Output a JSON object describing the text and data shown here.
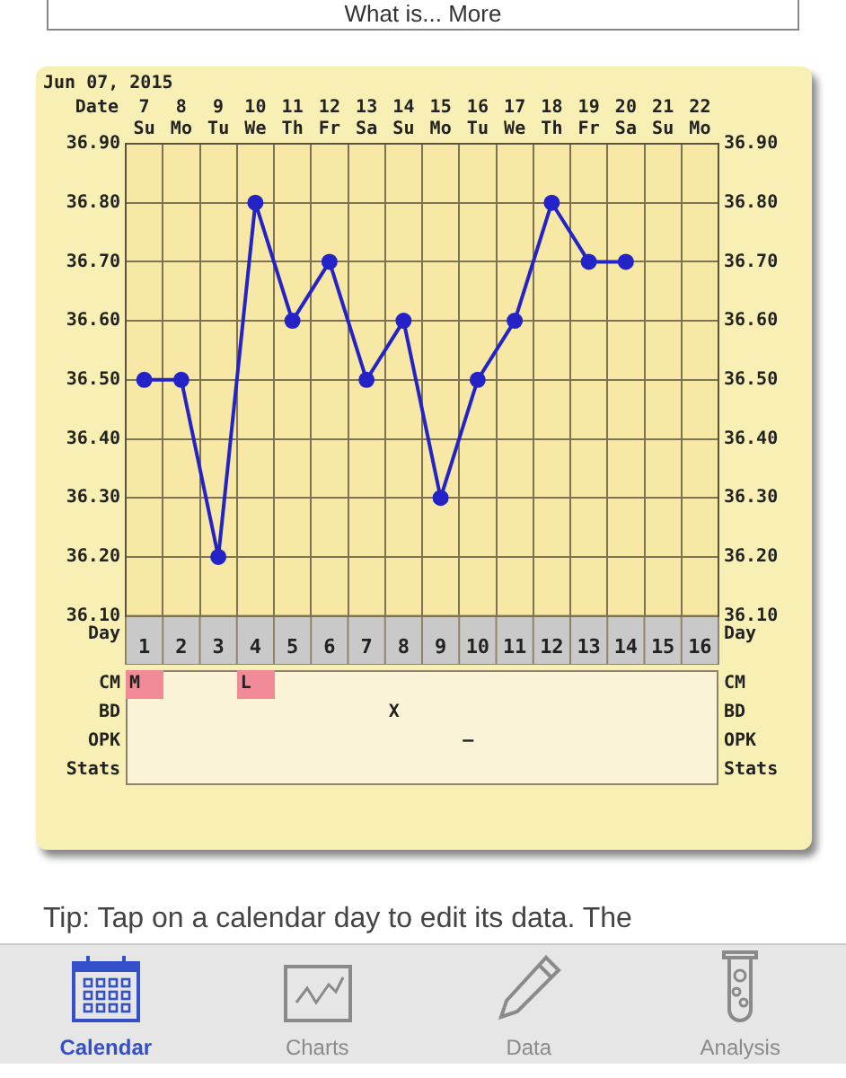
{
  "chart_data": [
    {
      "type": "line",
      "title": "Jun 07, 2015",
      "annotations": [
        "What is... More"
      ],
      "xlabel": "Date",
      "categories": [
        "7\nSu",
        "8\nMo",
        "9\nTu",
        "10\nWe",
        "11\nTh",
        "12\nFr",
        "13\nSa",
        "14\nSu",
        "15\nMo",
        "16\nTu",
        "17\nWe",
        "18\nTh",
        "19\nFr",
        "20\nSa",
        "21\nSu",
        "22\nMo"
      ],
      "series": [
        {
          "color": "#2323c8",
          "values": [
            36.5,
            36.5,
            36.2,
            36.8,
            36.6,
            36.7,
            36.5,
            36.6,
            36.3,
            36.5,
            36.6,
            36.8,
            36.7,
            36.7,
            null,
            null
          ]
        }
      ],
      "ylim": [
        36.1,
        36.9
      ],
      "yticks": [
        {
          "value": 36.1,
          "label": "36.10"
        },
        {
          "value": 36.2,
          "label": "36.20"
        },
        {
          "value": 36.3,
          "label": "36.30"
        },
        {
          "value": 36.4,
          "label": "36.40"
        },
        {
          "value": 36.5,
          "label": "36.50"
        },
        {
          "value": 36.6,
          "label": "36.60"
        },
        {
          "value": 36.7,
          "label": "36.70"
        },
        {
          "value": 36.8,
          "label": "36.80"
        },
        {
          "value": 36.9,
          "label": "36.90"
        }
      ],
      "y2lim": [
        36.1,
        36.9
      ],
      "y2ticks": [
        {
          "value": 36.1,
          "label": "36.10"
        },
        {
          "value": 36.2,
          "label": "36.20"
        },
        {
          "value": 36.3,
          "label": "36.30"
        },
        {
          "value": 36.4,
          "label": "36.40"
        },
        {
          "value": 36.5,
          "label": "36.50"
        },
        {
          "value": 36.6,
          "label": "36.60"
        },
        {
          "value": 36.7,
          "label": "36.70"
        },
        {
          "value": 36.8,
          "label": "36.80"
        },
        {
          "value": 36.9,
          "label": "36.90"
        }
      ],
      "x2label": "Day",
      "x2lim": [
        0.5,
        16.5
      ],
      "x2ticks": [
        1,
        2,
        3,
        4,
        5,
        6,
        7,
        8,
        9,
        10,
        11,
        12,
        13,
        14,
        15,
        16
      ],
      "grid": true,
      "marker": "circle",
      "legend": false
    },
    {
      "type": "other",
      "y_categories": [
        "CM",
        "BD",
        "OPK",
        "Stats"
      ],
      "y2_categories": [
        "CM",
        "BD",
        "OPK",
        "Stats"
      ],
      "cell_labels": [
        [
          "M",
          null,
          null,
          "L",
          null,
          null,
          null,
          null,
          null,
          null,
          null,
          null,
          null,
          null,
          null,
          null
        ],
        [
          null,
          null,
          null,
          null,
          null,
          null,
          null,
          "X",
          null,
          null,
          null,
          null,
          null,
          null,
          null,
          null
        ],
        [
          null,
          null,
          null,
          null,
          null,
          null,
          null,
          null,
          null,
          "–",
          null,
          null,
          null,
          null,
          null,
          null
        ],
        [
          null,
          null,
          null,
          null,
          null,
          null,
          null,
          null,
          null,
          null,
          null,
          null,
          null,
          null,
          null,
          null
        ]
      ],
      "annotations": [
        "Tip: Tap on a calendar day to edit its data. The"
      ]
    },
    {
      "type": "other",
      "categories": [
        "Calendar",
        "Charts",
        "Data",
        "Analysis"
      ]
    }
  ]
}
